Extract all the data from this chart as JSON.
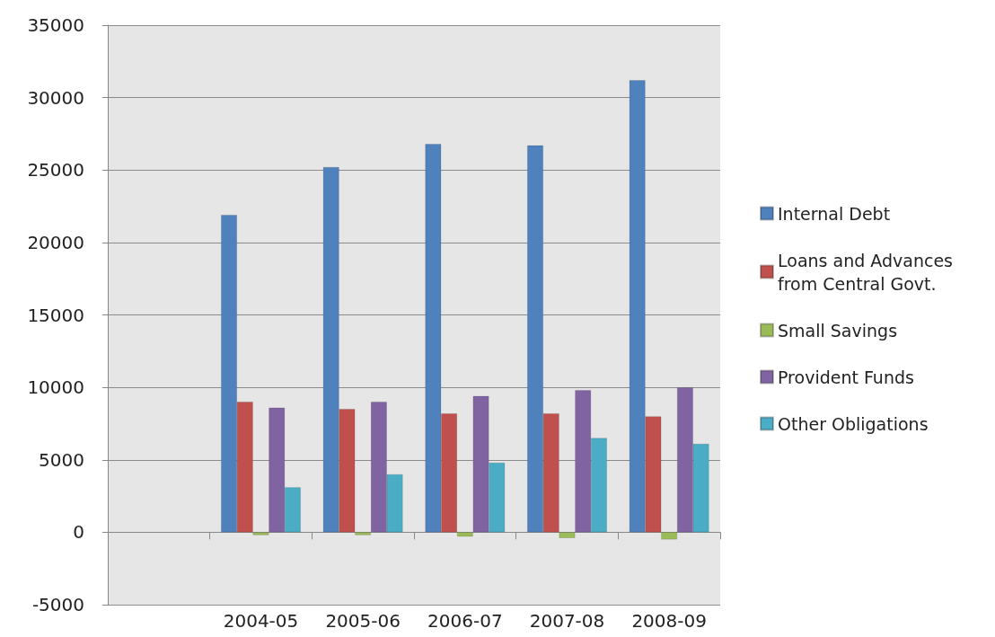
{
  "chart_data": {
    "type": "bar",
    "categories": [
      null,
      "2004-05",
      "2005-06",
      "2006-07",
      "2007-08",
      "2008-09"
    ],
    "series": [
      {
        "name": "Internal Debt",
        "color": "#4f81bd",
        "values": [
          null,
          21900,
          25200,
          26800,
          26700,
          31200
        ]
      },
      {
        "name": "Loans and Advances from Central Govt.",
        "color": "#c0504d",
        "values": [
          null,
          9000,
          8500,
          8200,
          8200,
          8000
        ]
      },
      {
        "name": "Small Savings",
        "color": "#9bbb59",
        "values": [
          null,
          -200,
          -200,
          -300,
          -400,
          -500
        ]
      },
      {
        "name": "Provident Funds",
        "color": "#8064a2",
        "values": [
          null,
          8600,
          9000,
          9400,
          9800,
          10000
        ]
      },
      {
        "name": "Other Obligations",
        "color": "#4bacc6",
        "values": [
          null,
          3100,
          4000,
          4800,
          6500,
          6100
        ]
      }
    ],
    "ylim": [
      -5000,
      35000
    ],
    "yticks": [
      -5000,
      0,
      5000,
      10000,
      15000,
      20000,
      25000,
      30000,
      35000
    ],
    "grid": "y",
    "legend": "right"
  }
}
